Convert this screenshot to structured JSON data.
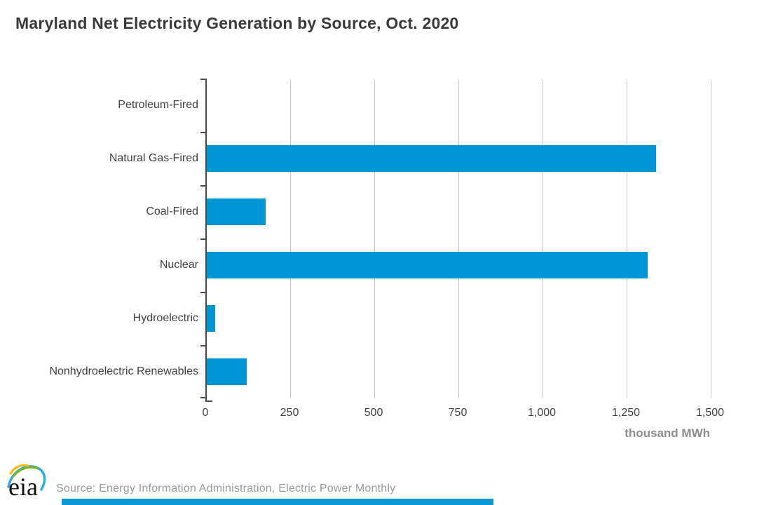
{
  "title": "Maryland Net Electricity Generation by Source, Oct. 2020",
  "chart_data": {
    "type": "bar",
    "orientation": "horizontal",
    "title": "Maryland Net Electricity Generation by Source, Oct. 2020",
    "categories": [
      "Petroleum-Fired",
      "Natural Gas-Fired",
      "Coal-Fired",
      "Nuclear",
      "Hydroelectric",
      "Nonhydroelectric Renewables"
    ],
    "values": [
      0,
      1335,
      175,
      1310,
      25,
      118
    ],
    "xlabel": "thousand MWh",
    "ylabel": "",
    "xlim": [
      0,
      1500
    ],
    "xtick_values": [
      0,
      250,
      500,
      750,
      1000,
      1250,
      1500
    ],
    "xtick_labels": [
      "0",
      "250",
      "500",
      "750",
      "1,000",
      "1,250",
      "1,500"
    ],
    "grid": true,
    "legend": "none",
    "bar_color": "#0095d5",
    "gridline_color": "#c8c8c8",
    "axis_color": "#4b4b4b",
    "label_color": "#404040",
    "unit_label_color": "#8d8d8d"
  },
  "footer": {
    "logo_text": "eia",
    "source": "Source: Energy Information Administration, Electric Power Monthly"
  }
}
